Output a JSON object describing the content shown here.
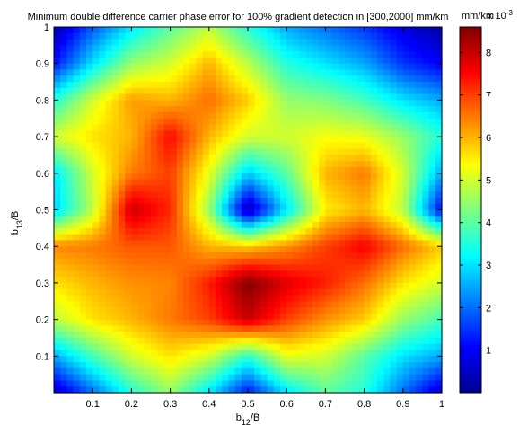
{
  "chart_data": {
    "type": "heatmap",
    "title": "Minimum double difference carrier phase error for 100% gradient detection in [300,2000] mm/km",
    "xlabel": {
      "main": "b",
      "sub": "12",
      "tail": "/B"
    },
    "ylabel": {
      "main": "b",
      "sub": "13",
      "tail": "/B"
    },
    "xlim": [
      0,
      1
    ],
    "ylim": [
      0,
      1
    ],
    "xticks": [
      0.1,
      0.2,
      0.3,
      0.4,
      0.5,
      0.6,
      0.7,
      0.8,
      0.9,
      1
    ],
    "yticks": [
      0.1,
      0.2,
      0.3,
      0.4,
      0.5,
      0.6,
      0.7,
      0.8,
      0.9,
      1
    ],
    "xtick_labels": [
      "0.1",
      "0.2",
      "0.3",
      "0.4",
      "0.5",
      "0.6",
      "0.7",
      "0.8",
      "0.9",
      "1"
    ],
    "ytick_labels": [
      "0.1",
      "0.2",
      "0.3",
      "0.4",
      "0.5",
      "0.6",
      "0.7",
      "0.8",
      "0.9",
      "1"
    ],
    "grid": false,
    "colormap": "jet",
    "colorbar": {
      "range": [
        0.0,
        0.0086
      ],
      "ticks": [
        1,
        2,
        3,
        4,
        5,
        6,
        7,
        8
      ],
      "tick_labels": [
        "1",
        "2",
        "3",
        "4",
        "5",
        "6",
        "7",
        "8"
      ],
      "exponent_base": "x 10",
      "exponent_power": "-3"
    },
    "units_suffix": "mm/km",
    "grid_x": [
      0,
      0.1,
      0.2,
      0.3,
      0.4,
      0.5,
      0.6,
      0.7,
      0.8,
      0.9,
      1.0
    ],
    "grid_y": [
      0,
      0.1,
      0.2,
      0.3,
      0.4,
      0.5,
      0.6,
      0.7,
      0.8,
      0.9,
      1.0
    ],
    "z_units": "x 10^-3",
    "z": [
      [
        0.5,
        2.0,
        3.5,
        4.5,
        3.0,
        1.2,
        3.0,
        4.0,
        3.5,
        2.0,
        0.6
      ],
      [
        2.5,
        3.8,
        5.0,
        5.6,
        5.0,
        3.6,
        5.2,
        5.0,
        4.0,
        3.0,
        2.5
      ],
      [
        4.8,
        5.6,
        6.0,
        6.5,
        7.0,
        8.0,
        7.0,
        6.3,
        5.8,
        4.5,
        3.8
      ],
      [
        5.6,
        6.0,
        6.3,
        6.4,
        7.3,
        8.6,
        7.8,
        7.3,
        6.6,
        5.6,
        5.0
      ],
      [
        6.4,
        6.5,
        6.8,
        6.8,
        6.0,
        5.8,
        6.3,
        7.0,
        7.6,
        6.6,
        5.8
      ],
      [
        2.8,
        4.8,
        8.0,
        7.2,
        4.5,
        0.3,
        3.0,
        5.5,
        6.0,
        4.8,
        1.0
      ],
      [
        3.0,
        5.0,
        6.5,
        7.0,
        5.2,
        2.8,
        4.0,
        6.0,
        6.5,
        5.0,
        2.5
      ],
      [
        5.0,
        5.6,
        6.0,
        7.5,
        6.0,
        5.0,
        5.0,
        5.3,
        5.2,
        4.5,
        3.5
      ],
      [
        3.5,
        5.0,
        6.2,
        6.0,
        6.6,
        5.8,
        4.5,
        4.3,
        3.8,
        3.0,
        2.5
      ],
      [
        1.2,
        3.0,
        4.5,
        5.0,
        6.0,
        4.8,
        3.5,
        3.0,
        2.5,
        1.5,
        1.0
      ],
      [
        0.3,
        1.8,
        3.0,
        4.0,
        4.8,
        3.5,
        2.5,
        2.0,
        1.5,
        0.8,
        0.3
      ]
    ]
  }
}
